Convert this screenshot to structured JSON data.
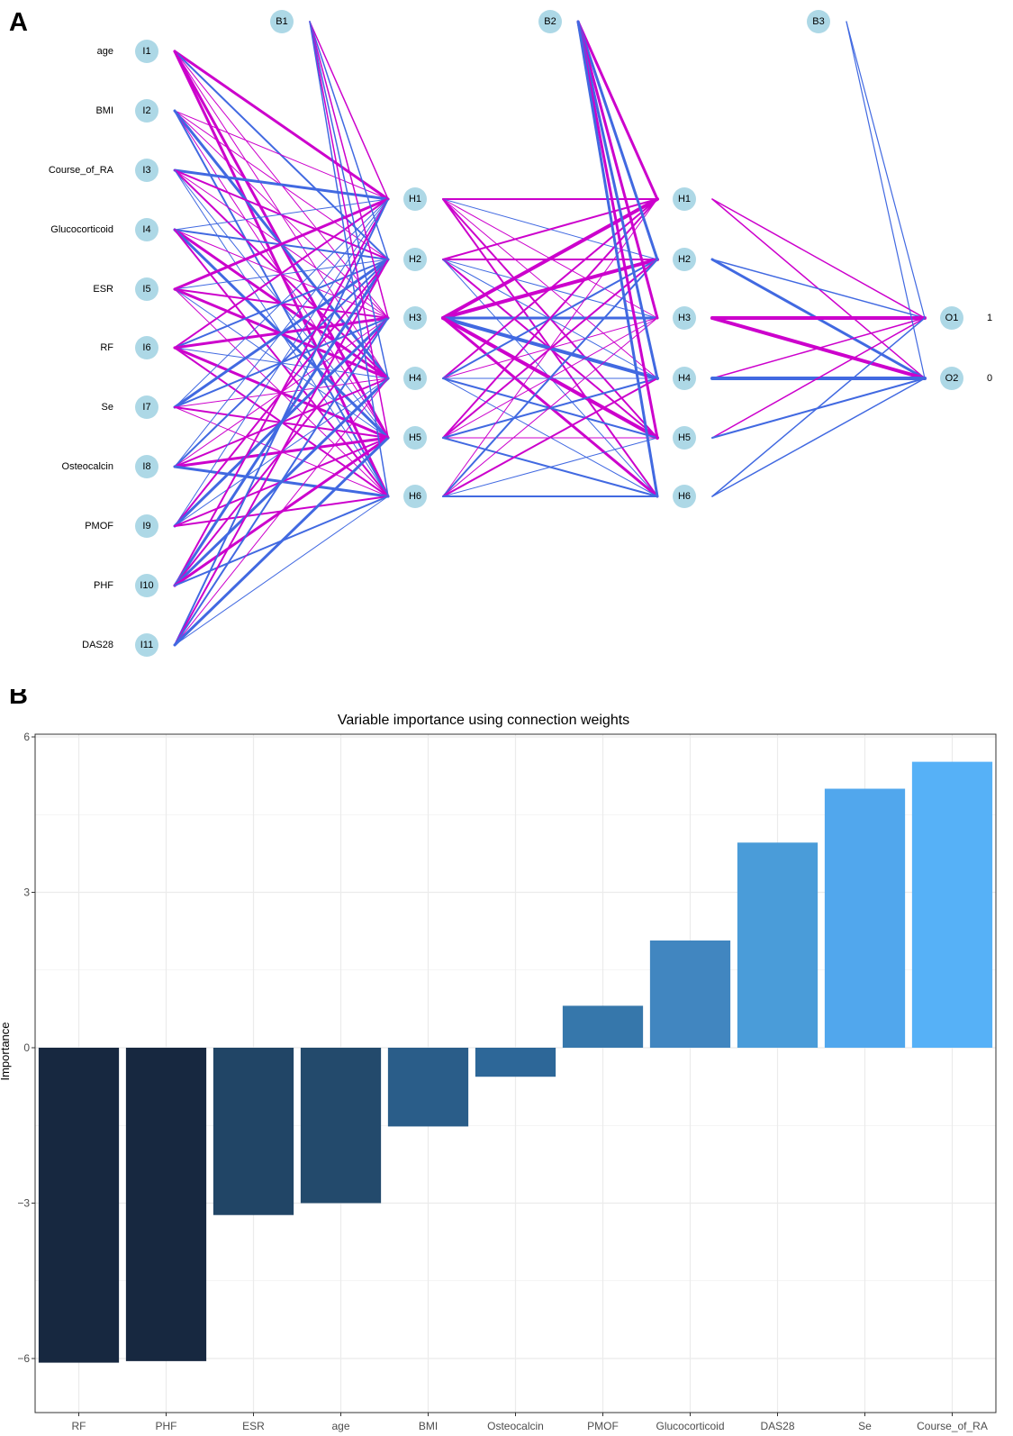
{
  "panel_a": {
    "letter": "A",
    "input_labels": [
      "age",
      "BMI",
      "Course_of_RA",
      "Glucocorticoid",
      "ESR",
      "RF",
      "Se",
      "Osteocalcin",
      "PMOF",
      "PHF",
      "DAS28"
    ],
    "input_nodes": [
      "I1",
      "I2",
      "I3",
      "I4",
      "I5",
      "I6",
      "I7",
      "I8",
      "I9",
      "I10",
      "I11"
    ],
    "bias_nodes": [
      "B1",
      "B2",
      "B3"
    ],
    "hidden1_nodes": [
      "H1",
      "H2",
      "H3",
      "H4",
      "H5",
      "H6"
    ],
    "hidden2_nodes": [
      "H1",
      "H2",
      "H3",
      "H4",
      "H5",
      "H6"
    ],
    "output_nodes": [
      "O1",
      "O2"
    ],
    "output_labels": [
      "1",
      "0"
    ],
    "colors": {
      "node": "#add8e6",
      "positive": "#cc00cc",
      "negative": "#4169e1"
    }
  },
  "panel_b": {
    "letter": "B"
  },
  "chart_data": {
    "type": "bar",
    "title": "Variable importance using connection weights",
    "xlabel": "",
    "ylabel": "Importance",
    "categories": [
      "RF",
      "PHF",
      "ESR",
      "age",
      "BMI",
      "Osteocalcin",
      "PMOF",
      "Glucocorticoid",
      "DAS28",
      "Se",
      "Course_of_RA"
    ],
    "values": [
      -6.08,
      -6.05,
      -3.23,
      -3.0,
      -1.52,
      -0.56,
      0.81,
      2.07,
      3.96,
      5.0,
      5.52
    ],
    "ylim": [
      -6.5,
      6.0
    ],
    "yticks": [
      -6,
      -3,
      0,
      3,
      6
    ],
    "grid": true,
    "legend": "none",
    "colors": [
      "#172840",
      "#172840",
      "#214566",
      "#234a6c",
      "#2a5d89",
      "#2d6798",
      "#3677ab",
      "#4186c0",
      "#4a9cd9",
      "#51a7ed",
      "#56b1f7"
    ]
  }
}
